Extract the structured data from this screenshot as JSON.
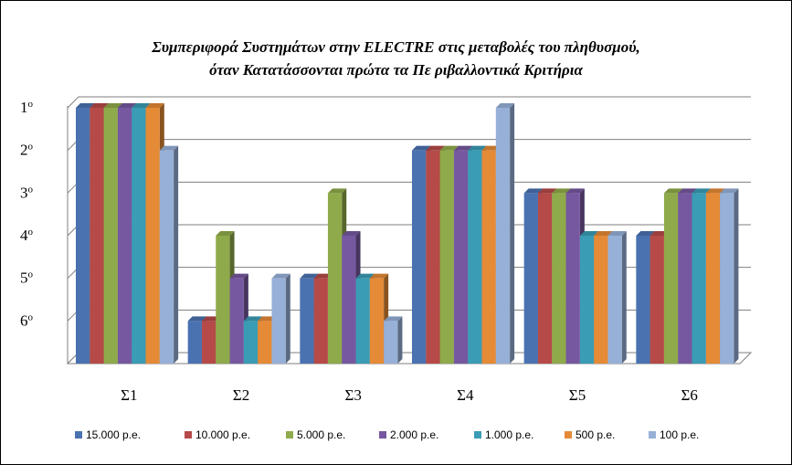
{
  "chart_data": {
    "type": "bar",
    "title_lines": [
      "Συμπεριφορά Συστημάτων στην ELECTRE στις μεταβολές του πληθυσμού,",
      "όταν Κατατάσσονται πρώτα τα Πε ριβαλλοντικά Κριτήρια"
    ],
    "categories": [
      "Σ1",
      "Σ2",
      "Σ3",
      "Σ4",
      "Σ5",
      "Σ6"
    ],
    "y_tick_labels": [
      "1ο",
      "2ο",
      "3ο",
      "4ο",
      "5ο",
      "6ο"
    ],
    "y_ticks": [
      1,
      2,
      3,
      4,
      5,
      6
    ],
    "ylim": [
      1,
      7
    ],
    "y_inverted": true,
    "grid": true,
    "legend_position": "bottom",
    "series": [
      {
        "name": "15.000 p.e.",
        "color": "#4a72b0",
        "values": [
          1,
          6,
          5,
          2,
          3,
          4
        ]
      },
      {
        "name": "10.000 p.e.",
        "color": "#b54a48",
        "values": [
          1,
          6,
          5,
          2,
          3,
          4
        ]
      },
      {
        "name": "5.000 p.e.",
        "color": "#8faa4a",
        "values": [
          1,
          4,
          3,
          2,
          3,
          3
        ]
      },
      {
        "name": "2.000 p.e.",
        "color": "#7658a0",
        "values": [
          1,
          5,
          4,
          2,
          3,
          3
        ]
      },
      {
        "name": "1.000 p.e.",
        "color": "#3a9cb5",
        "values": [
          1,
          6,
          5,
          2,
          4,
          3
        ]
      },
      {
        "name": "500 p.e.",
        "color": "#e58a36",
        "values": [
          1,
          6,
          5,
          2,
          4,
          3
        ]
      },
      {
        "name": "100 p.e.",
        "color": "#97b0d8",
        "values": [
          2,
          5,
          6,
          1,
          4,
          3
        ]
      }
    ]
  }
}
